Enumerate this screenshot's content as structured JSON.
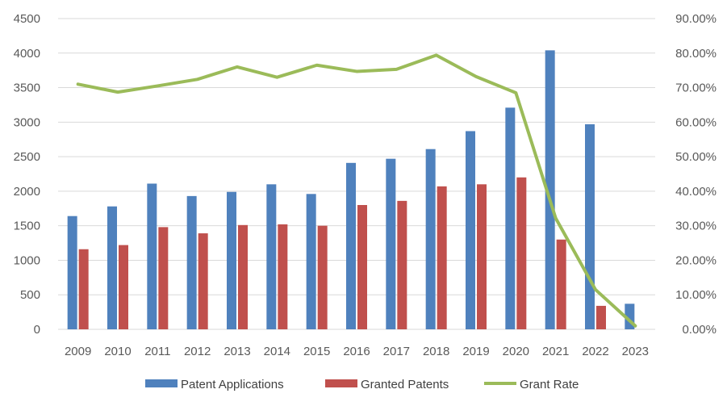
{
  "chart_data": {
    "type": "bar",
    "categories": [
      "2009",
      "2010",
      "2011",
      "2012",
      "2013",
      "2014",
      "2015",
      "2016",
      "2017",
      "2018",
      "2019",
      "2020",
      "2021",
      "2022",
      "2023"
    ],
    "series": [
      {
        "name": "Patent Applications",
        "type": "bar",
        "axis": "left",
        "color": "#4f81bd",
        "values": [
          1640,
          1780,
          2110,
          1930,
          1990,
          2100,
          1960,
          2410,
          2470,
          2610,
          2870,
          3210,
          4040,
          2970,
          370
        ]
      },
      {
        "name": "Granted Patents",
        "type": "bar",
        "axis": "left",
        "color": "#c0504d",
        "values": [
          1160,
          1220,
          1480,
          1390,
          1510,
          1520,
          1500,
          1800,
          1860,
          2070,
          2100,
          2200,
          1300,
          340,
          0
        ]
      },
      {
        "name": "Grant Rate",
        "type": "line",
        "axis": "right",
        "color": "#9bbb59",
        "values": [
          71.0,
          68.7,
          70.5,
          72.4,
          76.0,
          73.0,
          76.5,
          74.7,
          75.3,
          79.4,
          73.2,
          68.5,
          32.2,
          11.5,
          1.0
        ]
      }
    ],
    "left_axis": {
      "min": 0,
      "max": 4500,
      "step": 500,
      "tick_labels": [
        "0",
        "500",
        "1000",
        "1500",
        "2000",
        "2500",
        "3000",
        "3500",
        "4000",
        "4500"
      ]
    },
    "right_axis": {
      "min": 0,
      "max": 90,
      "step": 10,
      "tick_labels": [
        "0.00%",
        "10.00%",
        "20.00%",
        "30.00%",
        "40.00%",
        "50.00%",
        "60.00%",
        "70.00%",
        "80.00%",
        "90.00%"
      ]
    },
    "grid": true,
    "legend_position": "bottom",
    "title": "",
    "xlabel": "",
    "ylabel": ""
  }
}
